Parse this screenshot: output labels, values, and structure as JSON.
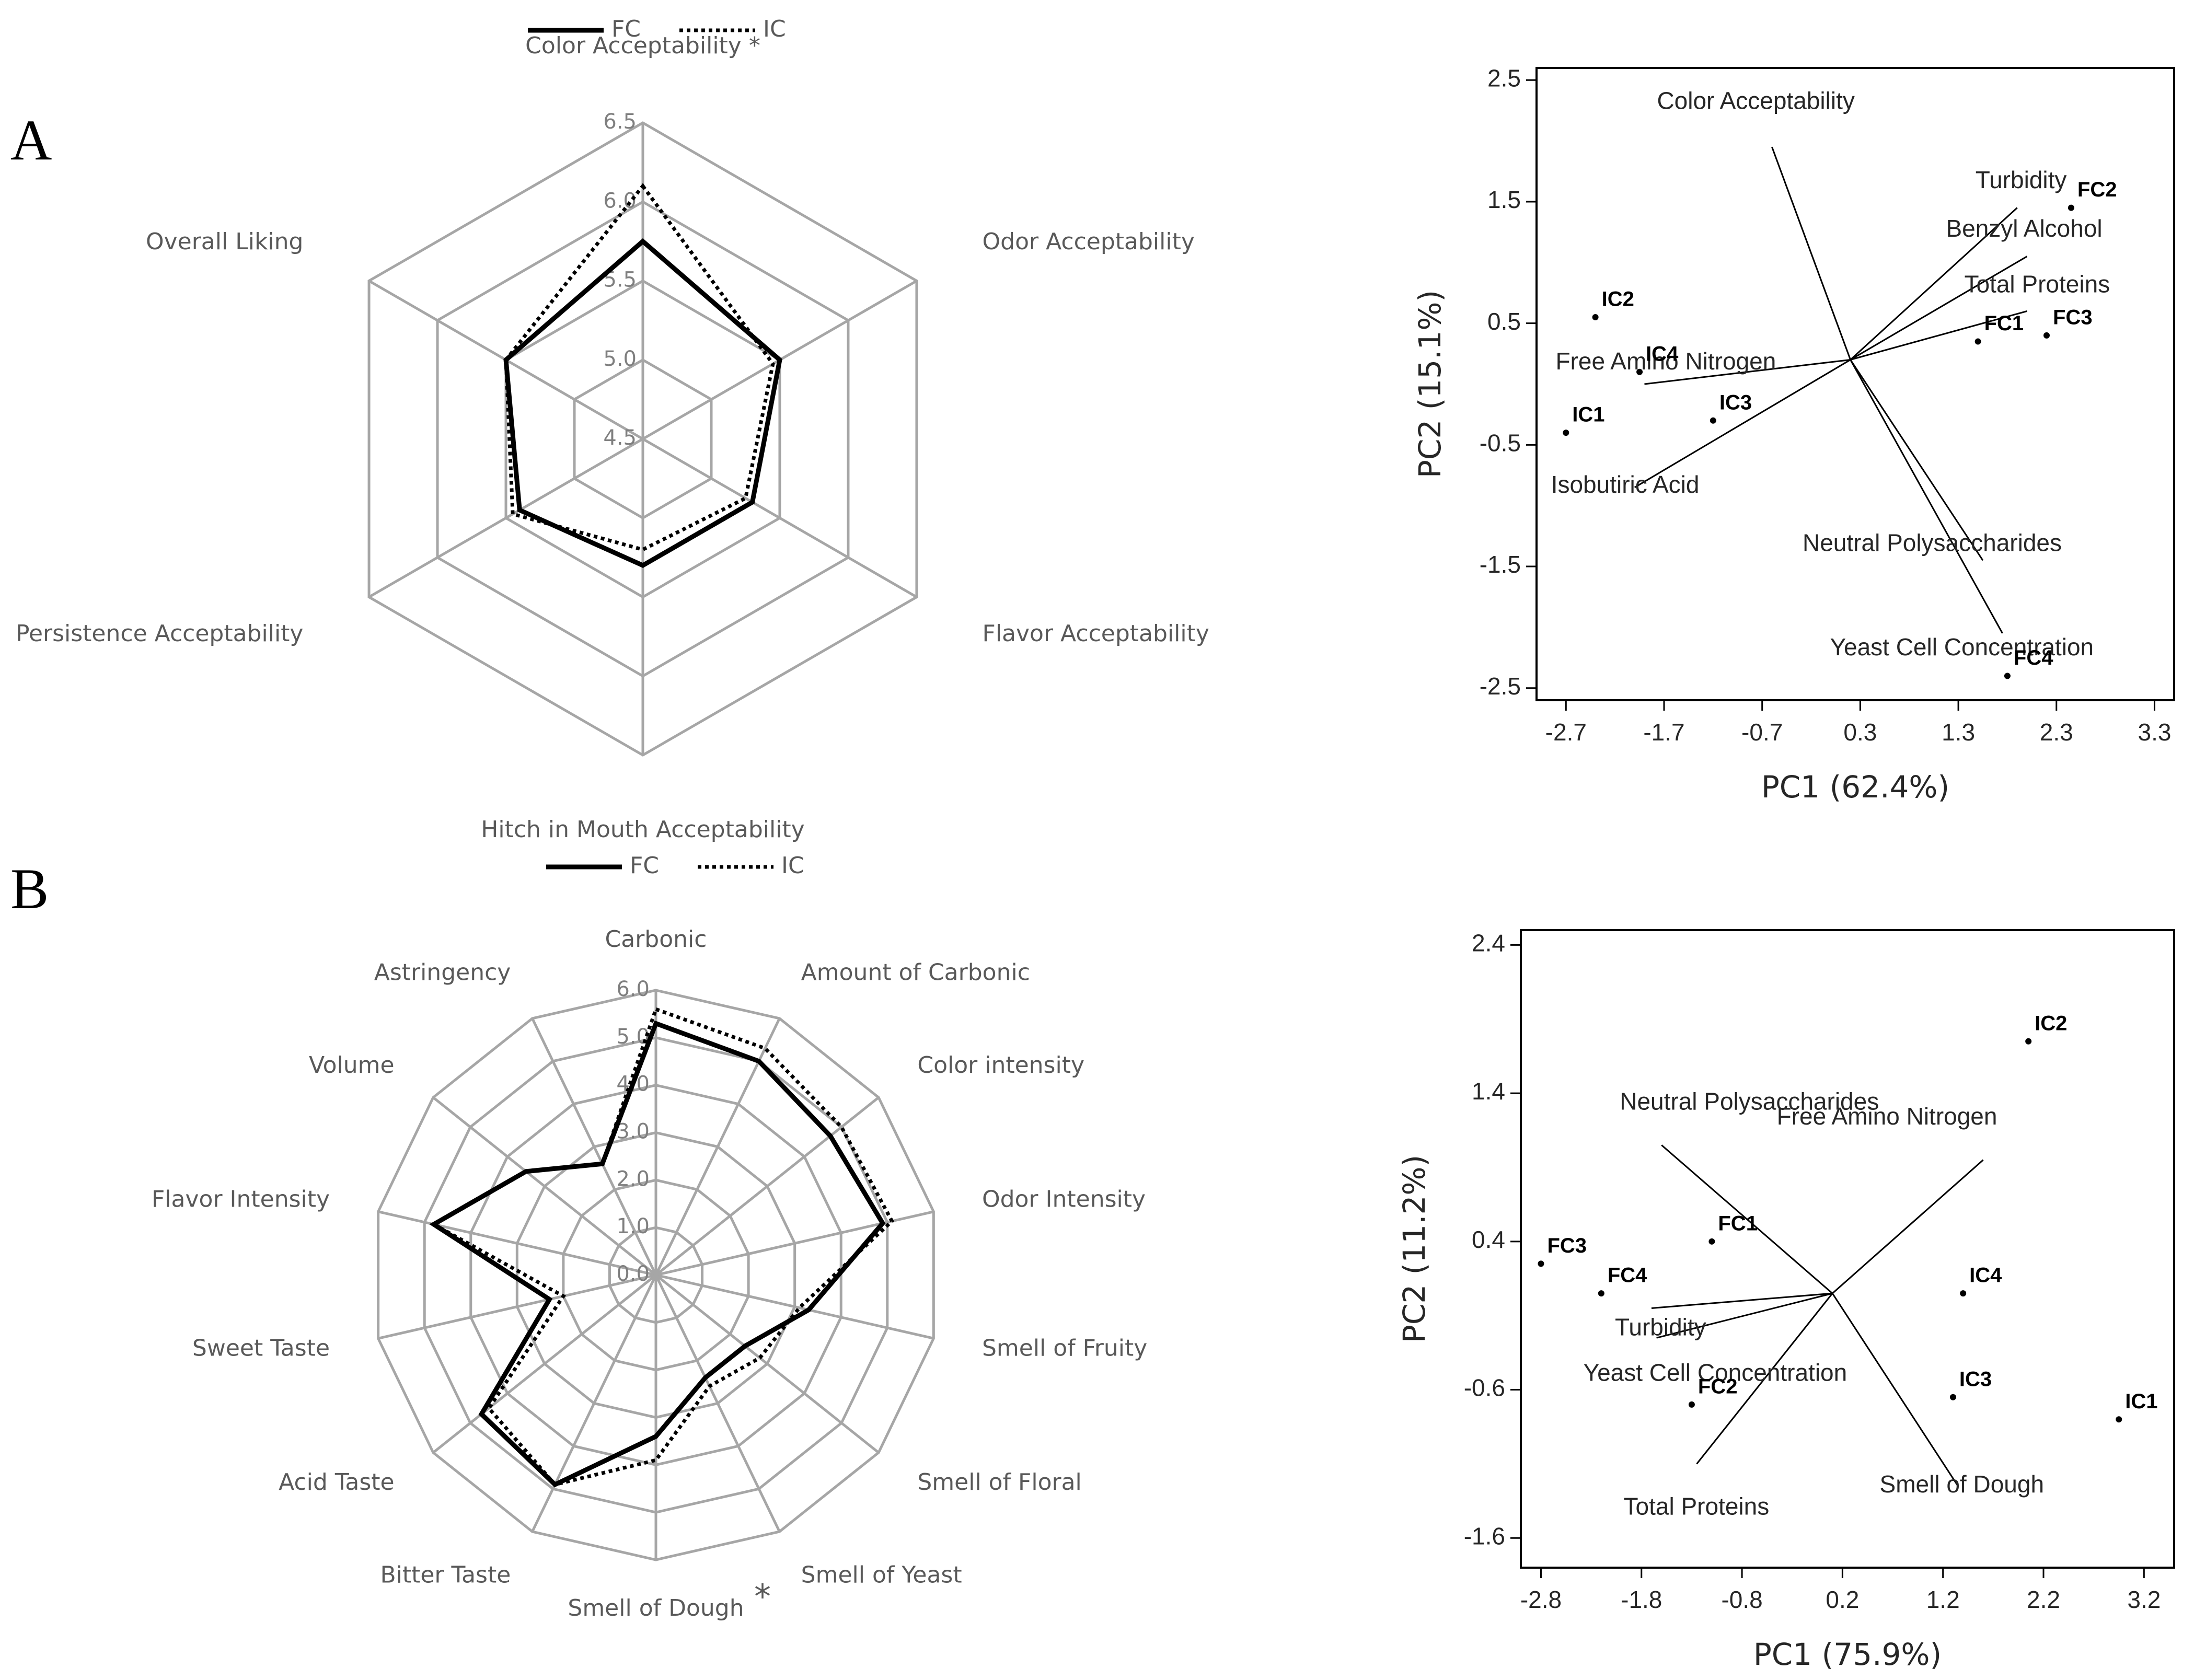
{
  "panel_labels": [
    "A",
    "B"
  ],
  "chart_data": [
    {
      "type": "radar",
      "legend": [
        "FC",
        "IC"
      ],
      "axes": [
        "Color Acceptability *",
        "Odor Acceptability",
        "Flavor Acceptability",
        "Hitch in Mouth Acceptability",
        "Persistence Acceptability",
        "Overall Liking"
      ],
      "ticks": [
        "4.5",
        "5.0",
        "5.5",
        "6.0",
        "6.5"
      ],
      "range": [
        4.5,
        6.5
      ],
      "series": [
        {
          "name": "FC",
          "style": "solid",
          "values": [
            5.75,
            5.5,
            5.3,
            5.3,
            5.4,
            5.5
          ]
        },
        {
          "name": "IC",
          "style": "dotted",
          "values": [
            6.1,
            5.45,
            5.25,
            5.2,
            5.45,
            5.5
          ]
        }
      ]
    },
    {
      "type": "biplot",
      "xlabel": "PC1 (62.4%)",
      "ylabel": "PC2 (15.1%)",
      "xlim": [
        -3.0,
        3.5
      ],
      "ylim": [
        -2.6,
        2.6
      ],
      "xticks": [
        "-2.7",
        "-1.7",
        "-0.7",
        "0.3",
        "1.3",
        "2.3",
        "3.3"
      ],
      "yticks": [
        "2.5",
        "1.5",
        "0.5",
        "-0.5",
        "-1.5",
        "-2.5"
      ],
      "points": [
        {
          "label": "FC2",
          "x": 2.45,
          "y": 1.45
        },
        {
          "label": "FC3",
          "x": 2.2,
          "y": 0.4
        },
        {
          "label": "FC1",
          "x": 1.5,
          "y": 0.35
        },
        {
          "label": "FC4",
          "x": 1.8,
          "y": -2.4
        },
        {
          "label": "IC2",
          "x": -2.4,
          "y": 0.55
        },
        {
          "label": "IC4",
          "x": -1.95,
          "y": 0.1
        },
        {
          "label": "IC3",
          "x": -1.2,
          "y": -0.3
        },
        {
          "label": "IC1",
          "x": -2.7,
          "y": -0.4
        }
      ],
      "vectors": [
        {
          "label": "Color Acceptability",
          "x": -0.6,
          "y": 1.95
        },
        {
          "label": "Turbidity",
          "x": 1.9,
          "y": 1.45
        },
        {
          "label": "Benzyl Alcohol",
          "x": 2.0,
          "y": 1.05
        },
        {
          "label": "Total Proteins",
          "x": 2.0,
          "y": 0.6
        },
        {
          "label": "Free Amino Nitrogen",
          "x": -1.9,
          "y": 0.0
        },
        {
          "label": "Isobutiric Acid",
          "x": -2.0,
          "y": -0.85
        },
        {
          "label": "Neutral Polysaccharides",
          "x": 1.55,
          "y": -1.45
        },
        {
          "label": "Yeast Cell Concentration",
          "x": 1.75,
          "y": -2.05
        }
      ]
    },
    {
      "type": "radar",
      "legend": [
        "FC",
        "IC"
      ],
      "axes": [
        "Carbonic",
        "Amount of Carbonic",
        "Color intensity",
        "Odor Intensity",
        "Smell of Fruity",
        "Smell of Floral",
        "Smell of Yeast",
        "Smell of Dough",
        "Bitter Taste",
        "Acid Taste",
        "Sweet Taste",
        "Flavor Intensity",
        "Volume",
        "Astringency"
      ],
      "asterisk_axis": "Smell of Dough",
      "ticks": [
        "0.0",
        "1.0",
        "2.0",
        "3.0",
        "4.0",
        "5.0",
        "6.0"
      ],
      "range": [
        0,
        6
      ],
      "series": [
        {
          "name": "FC",
          "style": "solid",
          "values": [
            5.3,
            5.0,
            4.7,
            4.9,
            3.3,
            2.4,
            2.4,
            3.4,
            4.9,
            4.7,
            2.3,
            4.8,
            3.5,
            2.6
          ]
        },
        {
          "name": "IC",
          "style": "dotted",
          "values": [
            5.6,
            5.3,
            5.0,
            5.1,
            3.1,
            2.8,
            2.6,
            3.9,
            4.9,
            4.5,
            2.0,
            4.8,
            3.5,
            2.6
          ]
        }
      ]
    },
    {
      "type": "biplot",
      "xlabel": "PC1 (75.9%)",
      "ylabel": "PC2 (11.2%)",
      "xlim": [
        -3.0,
        3.5
      ],
      "ylim": [
        -1.8,
        2.5
      ],
      "xticks": [
        "-2.8",
        "-1.8",
        "-0.8",
        "0.2",
        "1.2",
        "2.2",
        "3.2"
      ],
      "yticks": [
        "2.4",
        "1.4",
        "0.4",
        "-0.6",
        "-1.6"
      ],
      "points": [
        {
          "label": "IC2",
          "x": 2.05,
          "y": 1.75
        },
        {
          "label": "IC4",
          "x": 1.4,
          "y": 0.05
        },
        {
          "label": "IC3",
          "x": 1.3,
          "y": -0.65
        },
        {
          "label": "IC1",
          "x": 2.95,
          "y": -0.8
        },
        {
          "label": "FC1",
          "x": -1.1,
          "y": 0.4
        },
        {
          "label": "FC3",
          "x": -2.8,
          "y": 0.25
        },
        {
          "label": "FC4",
          "x": -2.2,
          "y": 0.05
        },
        {
          "label": "FC2",
          "x": -1.3,
          "y": -0.7
        }
      ],
      "vectors": [
        {
          "label": "Neutral Polysaccharides",
          "x": -1.6,
          "y": 1.05
        },
        {
          "label": "Free Amino Nitrogen",
          "x": 1.6,
          "y": 0.95
        },
        {
          "label": "Turbidity",
          "x": -1.7,
          "y": -0.05
        },
        {
          "label": "Yeast Cell Concentration",
          "x": -1.65,
          "y": -0.25
        },
        {
          "label": "Total Proteins",
          "x": -1.25,
          "y": -1.1
        },
        {
          "label": "Smell of Dough",
          "x": 1.35,
          "y": -1.25
        }
      ]
    }
  ]
}
